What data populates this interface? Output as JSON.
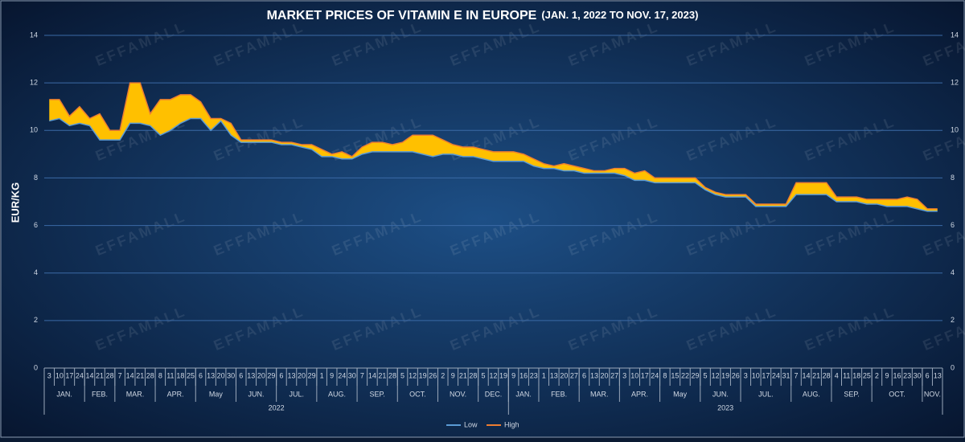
{
  "chart_data": {
    "type": "band",
    "title": "MARKET PRICES OF VITAMIN  E IN EUROPE",
    "title_note": "(JAN. 1, 2022 TO NOV. 17, 2023)",
    "ylabel": "EUR/KG",
    "watermark": "EFFAMALL",
    "ylim": [
      0,
      14
    ],
    "yticks": [
      0,
      2,
      4,
      6,
      8,
      10,
      12,
      14
    ],
    "y2lim": [
      0,
      14
    ],
    "y2ticks": [
      0,
      2,
      4,
      6,
      8,
      10,
      12,
      14
    ],
    "grid": true,
    "legend": "bottom",
    "fill_color": "#ffc000",
    "groups": [
      {
        "year": "2022",
        "months": [
          {
            "name": "JAN.",
            "days": [
              "3",
              "10",
              "17",
              "24"
            ]
          },
          {
            "name": "FEB.",
            "days": [
              "14",
              "21",
              "28"
            ]
          },
          {
            "name": "MAR.",
            "days": [
              "7",
              "14",
              "21",
              "28"
            ]
          },
          {
            "name": "APR.",
            "days": [
              "8",
              "11",
              "18",
              "25"
            ]
          },
          {
            "name": "May",
            "days": [
              "6",
              "13",
              "20",
              "30"
            ]
          },
          {
            "name": "JUN.",
            "days": [
              "6",
              "13",
              "20",
              "29"
            ]
          },
          {
            "name": "JUL.",
            "days": [
              "6",
              "13",
              "20",
              "29"
            ]
          },
          {
            "name": "AUG.",
            "days": [
              "1",
              "9",
              "24",
              "30"
            ]
          },
          {
            "name": "SEP.",
            "days": [
              "7",
              "14",
              "21",
              "28"
            ]
          },
          {
            "name": "OCT.",
            "days": [
              "5",
              "12",
              "19",
              "26"
            ]
          },
          {
            "name": "NOV.",
            "days": [
              "2",
              "9",
              "21",
              "28"
            ]
          },
          {
            "name": "DEC.",
            "days": [
              "5",
              "12",
              "19"
            ]
          }
        ]
      },
      {
        "year": "2023",
        "months": [
          {
            "name": "JAN.",
            "days": [
              "9",
              "16",
              "23"
            ]
          },
          {
            "name": "FEB.",
            "days": [
              "1",
              "13",
              "20",
              "27"
            ]
          },
          {
            "name": "MAR.",
            "days": [
              "6",
              "13",
              "20",
              "27"
            ]
          },
          {
            "name": "APR.",
            "days": [
              "3",
              "10",
              "17",
              "24"
            ]
          },
          {
            "name": "May",
            "days": [
              "8",
              "15",
              "22",
              "29"
            ]
          },
          {
            "name": "JUN.",
            "days": [
              "5",
              "12",
              "19",
              "26"
            ]
          },
          {
            "name": "JUL.",
            "days": [
              "3",
              "10",
              "17",
              "24",
              "31"
            ]
          },
          {
            "name": "AUG.",
            "days": [
              "7",
              "14",
              "21",
              "28"
            ]
          },
          {
            "name": "SEP.",
            "days": [
              "4",
              "11",
              "18",
              "25"
            ]
          },
          {
            "name": "OCT.",
            "days": [
              "2",
              "9",
              "16",
              "23",
              "30"
            ]
          },
          {
            "name": "NOV.",
            "days": [
              "6",
              "13"
            ]
          }
        ]
      }
    ],
    "series": [
      {
        "name": "Low",
        "color": "#5b9bd5",
        "values": [
          10.4,
          10.5,
          10.2,
          10.3,
          10.2,
          9.6,
          9.6,
          9.6,
          10.3,
          10.3,
          10.2,
          9.8,
          10.0,
          10.3,
          10.5,
          10.5,
          10.0,
          10.4,
          9.8,
          9.5,
          9.5,
          9.5,
          9.5,
          9.4,
          9.4,
          9.3,
          9.2,
          8.9,
          8.9,
          8.8,
          8.8,
          9.0,
          9.1,
          9.1,
          9.1,
          9.1,
          9.1,
          9.0,
          8.9,
          9.0,
          9.0,
          8.9,
          8.9,
          8.8,
          8.7,
          8.7,
          8.7,
          8.7,
          8.5,
          8.4,
          8.4,
          8.3,
          8.3,
          8.2,
          8.2,
          8.2,
          8.2,
          8.1,
          7.9,
          7.9,
          7.8,
          7.8,
          7.8,
          7.8,
          7.8,
          7.5,
          7.3,
          7.2,
          7.2,
          7.2,
          6.8,
          6.8,
          6.8,
          6.8,
          7.3,
          7.3,
          7.3,
          7.3,
          7.0,
          7.0,
          7.0,
          6.9,
          6.9,
          6.8,
          6.8,
          6.8,
          6.7,
          6.6,
          6.6
        ]
      },
      {
        "name": "High",
        "color": "#ed7d31",
        "values": [
          11.3,
          11.3,
          10.6,
          11.0,
          10.5,
          10.7,
          10.0,
          10.0,
          12.0,
          12.0,
          10.7,
          11.3,
          11.3,
          11.5,
          11.5,
          11.2,
          10.5,
          10.5,
          10.3,
          9.6,
          9.6,
          9.6,
          9.6,
          9.5,
          9.5,
          9.4,
          9.4,
          9.2,
          9.0,
          9.1,
          8.9,
          9.3,
          9.5,
          9.5,
          9.4,
          9.5,
          9.8,
          9.8,
          9.8,
          9.6,
          9.4,
          9.3,
          9.3,
          9.2,
          9.1,
          9.1,
          9.1,
          9.0,
          8.8,
          8.6,
          8.5,
          8.6,
          8.5,
          8.4,
          8.3,
          8.3,
          8.4,
          8.4,
          8.2,
          8.3,
          8.0,
          8.0,
          8.0,
          8.0,
          8.0,
          7.6,
          7.4,
          7.3,
          7.3,
          7.3,
          6.9,
          6.9,
          6.9,
          6.9,
          7.8,
          7.8,
          7.8,
          7.8,
          7.2,
          7.2,
          7.2,
          7.1,
          7.1,
          7.1,
          7.1,
          7.2,
          7.1,
          6.7,
          6.7
        ]
      }
    ]
  }
}
